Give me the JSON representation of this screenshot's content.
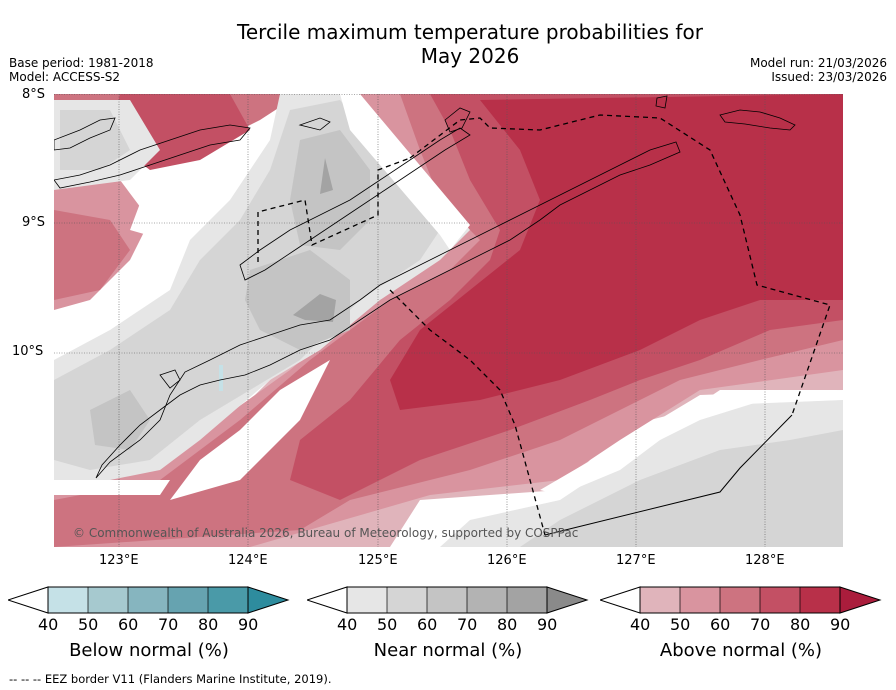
{
  "title": {
    "line1": "Tercile maximum temperature probabilities for",
    "line2": "May 2026"
  },
  "meta": {
    "base_period": "Base period: 1981-2018",
    "model": "Model: ACCESS-S2",
    "model_run": "Model run: 21/03/2026",
    "issued": "Issued: 23/03/2026"
  },
  "map": {
    "lat_labels": [
      "8°S",
      "9°S",
      "10°S"
    ],
    "lon_labels": [
      "123°E",
      "124°E",
      "125°E",
      "126°E",
      "127°E",
      "128°E"
    ],
    "credit": "© Commonwealth of Australia 2026, Bureau of Meteorology, supported by COSPPac"
  },
  "colorbars": [
    {
      "label": "Below normal (%)",
      "ticks": [
        "40",
        "50",
        "60",
        "70",
        "80",
        "90"
      ],
      "colors": [
        "#c5e1e7",
        "#a6c9cf",
        "#86b5bf",
        "#66a3b0",
        "#4a9aa8",
        "#2e8c9e"
      ]
    },
    {
      "label": "Near normal (%)",
      "ticks": [
        "40",
        "50",
        "60",
        "70",
        "80",
        "90"
      ],
      "colors": [
        "#e6e6e6",
        "#d5d5d5",
        "#c4c4c4",
        "#b3b3b3",
        "#a3a3a3",
        "#8a8a8a"
      ]
    },
    {
      "label": "Above normal (%)",
      "ticks": [
        "40",
        "50",
        "60",
        "70",
        "80",
        "90"
      ],
      "colors": [
        "#e0b4bb",
        "#d9949f",
        "#cd7380",
        "#c35064",
        "#b83049",
        "#aa1d3c"
      ]
    }
  ],
  "footer": "--  --  -- EEZ border V11 (Flanders Marine Institute, 2019)."
}
